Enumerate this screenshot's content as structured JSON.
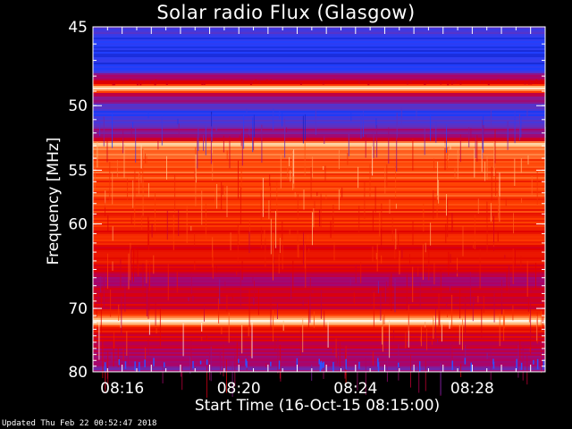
{
  "chart_data": {
    "type": "heatmap",
    "title": "Solar radio Flux (Glasgow)",
    "xlabel": "Start Time (16-Oct-15 08:15:00)",
    "ylabel": "Frequency [MHz]",
    "x_start": "08:15:00",
    "x_range_minutes": [
      0,
      15.5
    ],
    "x_ticks": [
      "08:16",
      "08:20",
      "08:24",
      "08:28"
    ],
    "x_tick_minutes": [
      1,
      5,
      9,
      13
    ],
    "y_range_mhz": [
      45,
      80
    ],
    "y_scale": "reciprocal",
    "y_ticks": [
      45,
      50,
      55,
      60,
      70,
      80
    ],
    "colormap": [
      "#1010a0",
      "#2040ff",
      "#6030c0",
      "#b00060",
      "#e00000",
      "#ff4000",
      "#ffc080",
      "#ffffff"
    ],
    "spectrum_profile": [
      {
        "mhz": 45.0,
        "level": 0.25
      },
      {
        "mhz": 45.8,
        "level": 0.12
      },
      {
        "mhz": 47.5,
        "level": 0.14
      },
      {
        "mhz": 48.4,
        "level": 0.55
      },
      {
        "mhz": 48.8,
        "level": 0.98
      },
      {
        "mhz": 49.2,
        "level": 0.45
      },
      {
        "mhz": 50.5,
        "level": 0.16
      },
      {
        "mhz": 51.5,
        "level": 0.3
      },
      {
        "mhz": 52.5,
        "level": 0.5
      },
      {
        "mhz": 52.8,
        "level": 0.95
      },
      {
        "mhz": 53.3,
        "level": 0.75
      },
      {
        "mhz": 56.0,
        "level": 0.7
      },
      {
        "mhz": 60.0,
        "level": 0.66
      },
      {
        "mhz": 63.0,
        "level": 0.6
      },
      {
        "mhz": 65.0,
        "level": 0.58
      },
      {
        "mhz": 66.0,
        "level": 0.42
      },
      {
        "mhz": 68.0,
        "level": 0.5
      },
      {
        "mhz": 70.0,
        "level": 0.55
      },
      {
        "mhz": 71.7,
        "level": 0.95
      },
      {
        "mhz": 73.0,
        "level": 0.6
      },
      {
        "mhz": 76.0,
        "level": 0.45
      },
      {
        "mhz": 79.0,
        "level": 0.38
      },
      {
        "mhz": 80.0,
        "level": 0.35
      }
    ]
  },
  "footer": {
    "updated": "Updated Thu Feb 22 00:52:47 2018"
  }
}
